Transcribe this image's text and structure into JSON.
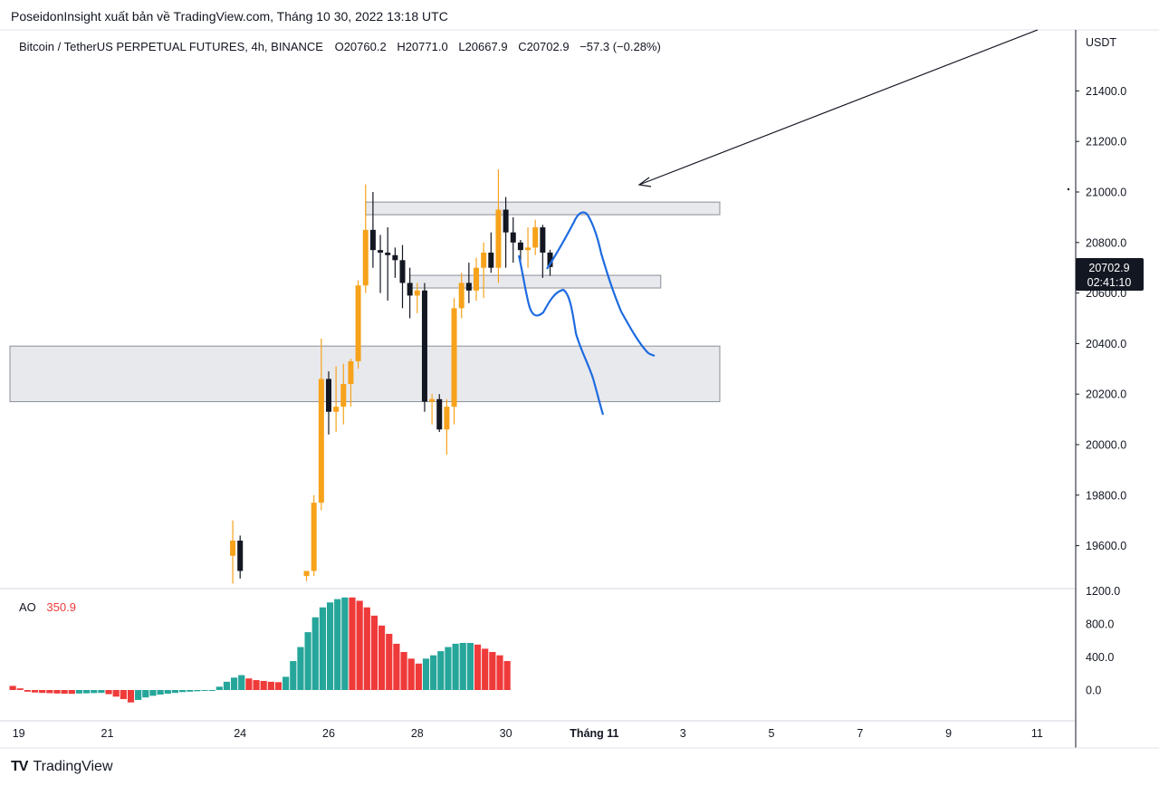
{
  "header": {
    "publisher_line": "PoseidonInsight xuất bản về TradingView.com, Tháng 10 30, 2022 13:18 UTC"
  },
  "legend": {
    "symbol": "Bitcoin / TetherUS PERPETUAL FUTURES, 4h, BINANCE",
    "open_label": "O",
    "open": "20760.2",
    "high_label": "H",
    "high": "20771.0",
    "low_label": "L",
    "low": "20667.9",
    "close_label": "C",
    "close": "20702.9",
    "change": "−57.3 (−0.28%)"
  },
  "price_axis": {
    "unit": "USDT",
    "ticks": [
      "21400.0",
      "21200.0",
      "21000.0",
      "20800.0",
      "20600.0",
      "20400.0",
      "20200.0",
      "20000.0",
      "19800.0",
      "19600.0"
    ],
    "last_price": "20702.9",
    "countdown": "02:41:10"
  },
  "ao_panel": {
    "label": "AO",
    "value": "350.9",
    "ticks": [
      "1200.0",
      "800.0",
      "400.0",
      "0.0"
    ]
  },
  "time_axis": {
    "labels": [
      "19",
      "21",
      "24",
      "26",
      "28",
      "30",
      "Tháng 11",
      "3",
      "5",
      "7",
      "9",
      "11"
    ]
  },
  "brand": {
    "logo": "TV",
    "name": "TradingView"
  },
  "colors": {
    "bull": "#f7a21b",
    "bear": "#131722",
    "zone_fill": "#e8e9ed",
    "zone_stroke": "#8c8f99",
    "ao_up": "#26a69a",
    "ao_down": "#ef3a3a",
    "drawing": "#1e6be0",
    "price_tag": "#131722"
  },
  "chart_data": {
    "type": "candlestick",
    "timeframe": "4h",
    "y_unit": "USDT",
    "ylim": [
      19470,
      21650
    ],
    "x_tick_labels": [
      "19",
      "21",
      "24",
      "26",
      "28",
      "30",
      "Tháng 11",
      "3",
      "5",
      "7",
      "9",
      "11"
    ],
    "candles": [
      {
        "t": "10-23 20:00",
        "o": 19560,
        "h": 19700,
        "l": 19450,
        "c": 19620
      },
      {
        "t": "10-24 00:00",
        "o": 19620,
        "h": 19640,
        "l": 19470,
        "c": 19500
      },
      {
        "t": "10-25 12:00",
        "o": 19480,
        "h": 19500,
        "l": 19460,
        "c": 19500
      },
      {
        "t": "10-25 16:00",
        "o": 19500,
        "h": 19800,
        "l": 19480,
        "c": 19770
      },
      {
        "t": "10-25 20:00",
        "o": 19770,
        "h": 20420,
        "l": 19740,
        "c": 20260
      },
      {
        "t": "10-26 00:00",
        "o": 20260,
        "h": 20290,
        "l": 20040,
        "c": 20130
      },
      {
        "t": "10-26 04:00",
        "o": 20130,
        "h": 20310,
        "l": 20050,
        "c": 20150
      },
      {
        "t": "10-26 08:00",
        "o": 20150,
        "h": 20320,
        "l": 20080,
        "c": 20240
      },
      {
        "t": "10-26 12:00",
        "o": 20240,
        "h": 20340,
        "l": 20150,
        "c": 20330
      },
      {
        "t": "10-26 16:00",
        "o": 20330,
        "h": 20650,
        "l": 20300,
        "c": 20630
      },
      {
        "t": "10-26 20:00",
        "o": 20630,
        "h": 21030,
        "l": 20600,
        "c": 20850
      },
      {
        "t": "10-27 00:00",
        "o": 20850,
        "h": 21000,
        "l": 20700,
        "c": 20770
      },
      {
        "t": "10-27 04:00",
        "o": 20770,
        "h": 20830,
        "l": 20600,
        "c": 20760
      },
      {
        "t": "10-27 08:00",
        "o": 20760,
        "h": 20860,
        "l": 20570,
        "c": 20750
      },
      {
        "t": "10-27 12:00",
        "o": 20750,
        "h": 20780,
        "l": 20660,
        "c": 20730
      },
      {
        "t": "10-27 16:00",
        "o": 20730,
        "h": 20790,
        "l": 20540,
        "c": 20640
      },
      {
        "t": "10-27 20:00",
        "o": 20640,
        "h": 20700,
        "l": 20500,
        "c": 20590
      },
      {
        "t": "10-28 00:00",
        "o": 20590,
        "h": 20640,
        "l": 20520,
        "c": 20610
      },
      {
        "t": "10-28 04:00",
        "o": 20610,
        "h": 20640,
        "l": 20130,
        "c": 20170
      },
      {
        "t": "10-28 08:00",
        "o": 20170,
        "h": 20200,
        "l": 20080,
        "c": 20180
      },
      {
        "t": "10-28 12:00",
        "o": 20180,
        "h": 20200,
        "l": 20050,
        "c": 20060
      },
      {
        "t": "10-28 16:00",
        "o": 20060,
        "h": 20180,
        "l": 19960,
        "c": 20150
      },
      {
        "t": "10-28 20:00",
        "o": 20150,
        "h": 20580,
        "l": 20080,
        "c": 20540
      },
      {
        "t": "10-29 00:00",
        "o": 20540,
        "h": 20680,
        "l": 20500,
        "c": 20640
      },
      {
        "t": "10-29 04:00",
        "o": 20640,
        "h": 20720,
        "l": 20560,
        "c": 20610
      },
      {
        "t": "10-29 08:00",
        "o": 20610,
        "h": 20740,
        "l": 20570,
        "c": 20700
      },
      {
        "t": "10-29 12:00",
        "o": 20700,
        "h": 20800,
        "l": 20580,
        "c": 20760
      },
      {
        "t": "10-29 16:00",
        "o": 20760,
        "h": 20840,
        "l": 20680,
        "c": 20700
      },
      {
        "t": "10-29 20:00",
        "o": 20700,
        "h": 21090,
        "l": 20640,
        "c": 20930
      },
      {
        "t": "10-30 00:00",
        "o": 20930,
        "h": 20980,
        "l": 20700,
        "c": 20840
      },
      {
        "t": "10-30 04:00",
        "o": 20840,
        "h": 20900,
        "l": 20720,
        "c": 20800
      },
      {
        "t": "10-30 08:00",
        "o": 20800,
        "h": 20810,
        "l": 20720,
        "c": 20770
      },
      {
        "t": "10-30 12:00",
        "o": 20770,
        "h": 20860,
        "l": 20700,
        "c": 20780
      },
      {
        "t": "10-30 16:00",
        "o": 20780,
        "h": 20890,
        "l": 20750,
        "c": 20860
      },
      {
        "t": "10-30 20:00",
        "o": 20860,
        "h": 20870,
        "l": 20660,
        "c": 20760
      },
      {
        "t": "10-31 00:00",
        "o": 20760.2,
        "h": 20771.0,
        "l": 20667.9,
        "c": 20702.9
      }
    ],
    "zones": [
      {
        "from": "10-26 20:00",
        "to": "11-03 20:00",
        "top": 20960,
        "bottom": 20910
      },
      {
        "from": "10-27 20:00",
        "to": "11-02 12:00",
        "top": 20670,
        "bottom": 20620
      },
      {
        "from": "10-18 16:00",
        "to": "11-03 20:00",
        "top": 20390,
        "bottom": 20170
      }
    ],
    "ao": {
      "name": "AO",
      "ylim": [
        -100,
        1230
      ],
      "values": [
        50,
        20,
        -20,
        -30,
        -35,
        -38,
        -42,
        -45,
        -46,
        -42,
        -40,
        -37,
        -35,
        -50,
        -80,
        -110,
        -150,
        -120,
        -90,
        -70,
        -55,
        -45,
        -35,
        -25,
        -20,
        -15,
        -10,
        0,
        40,
        100,
        150,
        180,
        140,
        120,
        110,
        100,
        95,
        160,
        350,
        520,
        700,
        880,
        1000,
        1060,
        1100,
        1120,
        1120,
        1080,
        1000,
        900,
        780,
        680,
        560,
        460,
        380,
        320,
        380,
        420,
        470,
        520,
        560,
        570,
        570,
        550,
        500,
        460,
        420,
        350.9
      ],
      "up": [
        false,
        false,
        false,
        false,
        false,
        false,
        false,
        false,
        false,
        true,
        true,
        true,
        true,
        false,
        false,
        false,
        false,
        true,
        true,
        true,
        true,
        true,
        true,
        true,
        true,
        true,
        true,
        true,
        true,
        true,
        true,
        true,
        false,
        false,
        false,
        false,
        false,
        true,
        true,
        true,
        true,
        true,
        true,
        true,
        true,
        true,
        false,
        false,
        false,
        false,
        false,
        false,
        false,
        false,
        false,
        false,
        true,
        true,
        true,
        true,
        true,
        true,
        true,
        false,
        false,
        false,
        false,
        false
      ]
    }
  }
}
